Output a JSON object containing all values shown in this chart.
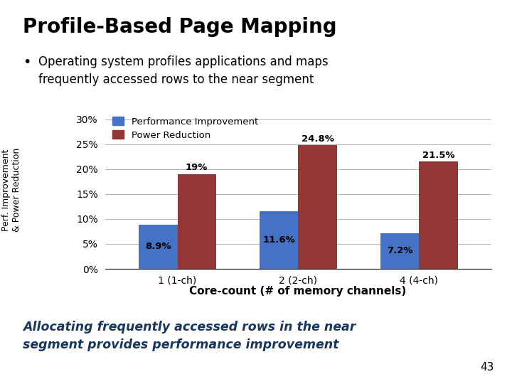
{
  "title": "Profile-Based Page Mapping",
  "bullet_text": "Operating system profiles applications and maps\nfrequently accessed rows to the near segment",
  "categories": [
    "1 (1-ch)",
    "2 (2-ch)",
    "4 (4-ch)"
  ],
  "perf_values": [
    8.9,
    11.6,
    7.2
  ],
  "power_values": [
    19.0,
    24.8,
    21.5
  ],
  "perf_labels": [
    "8.9%",
    "11.6%",
    "7.2%"
  ],
  "power_labels": [
    "19%",
    "24.8%",
    "21.5%"
  ],
  "perf_color": "#4472C4",
  "power_color": "#943634",
  "ylabel": "Perf. Improvement\n& Power Reduction",
  "xlabel": "Core-count (# of memory channels)",
  "yticks": [
    0,
    5,
    10,
    15,
    20,
    25,
    30
  ],
  "ytick_labels": [
    "0%",
    "5%",
    "10%",
    "15%",
    "20%",
    "25%",
    "30%"
  ],
  "ylim": [
    0,
    32
  ],
  "legend_labels": [
    "Performance Improvement",
    "Power Reduction"
  ],
  "footer_text": "Allocating frequently accessed rows in the near\nsegment provides performance improvement",
  "footer_color": "#17375E",
  "page_number": "43",
  "bg_color": "#FFFFFF"
}
